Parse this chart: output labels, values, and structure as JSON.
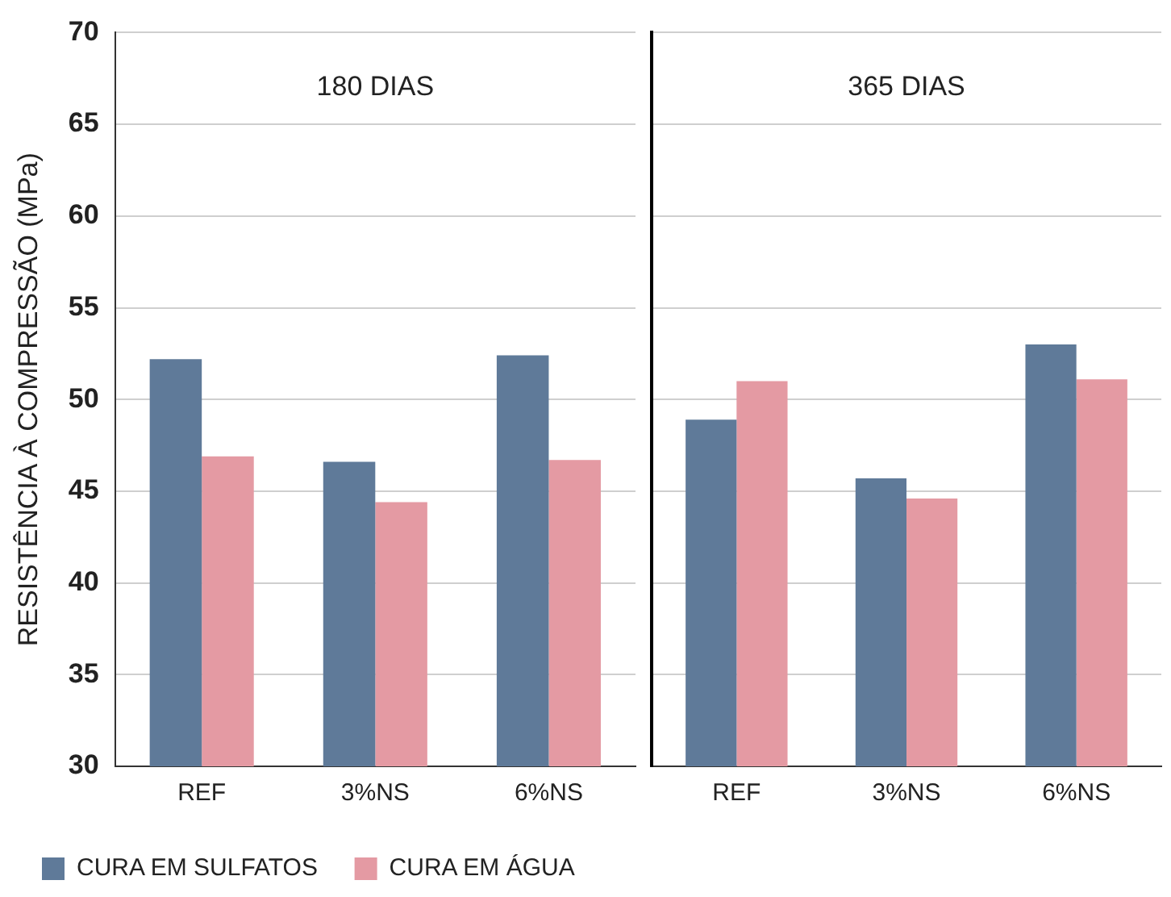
{
  "chart_data": [
    {
      "type": "bar",
      "ylabel": "RESISTÊNCIA À COMPRESSÃO (MPa)",
      "annotations": [
        "180 DIAS"
      ],
      "categories": [
        "REF",
        "3%NS",
        "6%NS"
      ],
      "series": [
        {
          "name": "CURA EM SULFATOS",
          "color": "#5f7a99",
          "values": [
            52.2,
            46.6,
            52.4
          ]
        },
        {
          "name": "CURA EM ÁGUA",
          "color": "#e49aa3",
          "values": [
            46.9,
            44.4,
            46.7
          ]
        }
      ],
      "ylim": [
        30,
        70
      ],
      "yticks": [
        30,
        35,
        40,
        45,
        50,
        55,
        60,
        65,
        70
      ],
      "grid": "y",
      "legend": "bottom"
    },
    {
      "type": "bar",
      "annotations": [
        "365 DIAS"
      ],
      "categories": [
        "REF",
        "3%NS",
        "6%NS"
      ],
      "series": [
        {
          "color": "#5f7a99",
          "values": [
            48.9,
            45.7,
            53.0
          ]
        },
        {
          "color": "#e49aa3",
          "values": [
            51.0,
            44.6,
            51.1
          ]
        }
      ],
      "ylim": [
        30,
        70
      ],
      "yticks": [
        30,
        35,
        40,
        45,
        50,
        55,
        60,
        65,
        70
      ],
      "grid": "y",
      "tick_labels": "x"
    }
  ]
}
